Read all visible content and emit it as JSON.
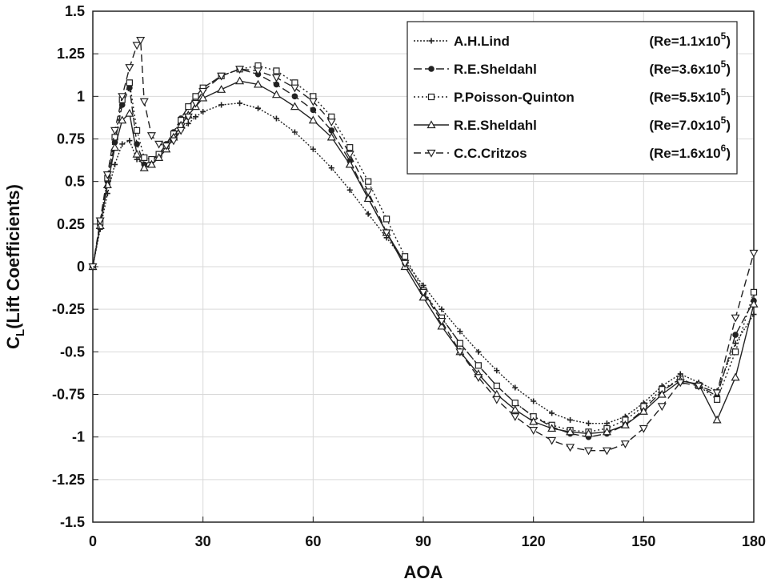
{
  "chart_data": {
    "type": "line",
    "xlabel": "AOA",
    "ylabel_main": "C",
    "ylabel_sub": "L",
    "ylabel_rest": "(Lift Coefficients)",
    "xlim": [
      0,
      180
    ],
    "ylim": [
      -1.5,
      1.5
    ],
    "xticks": [
      0,
      30,
      60,
      90,
      120,
      150,
      180
    ],
    "yticks": [
      1.5,
      1.25,
      1,
      0.75,
      0.5,
      0.25,
      0,
      -0.25,
      -0.5,
      -0.75,
      -1,
      -1.25,
      -1.5
    ],
    "ytick_labels": [
      "1.5",
      "1.25",
      "1",
      "0.75",
      "0.5",
      "0.25",
      "0",
      "-0.25",
      "-0.5",
      "-0.75",
      "-1",
      "-1.25",
      "-1.5"
    ],
    "grid": true,
    "legend_position": "top-right",
    "series": [
      {
        "name": "A.H.Lind",
        "re_base": "(Re=1.1x10",
        "re_exp": "5",
        "re_close": ")",
        "dash": "2,2",
        "marker": "plus",
        "x": [
          0,
          2,
          4,
          6,
          8,
          10,
          12,
          14,
          16,
          18,
          20,
          22,
          24,
          26,
          28,
          30,
          35,
          40,
          45,
          50,
          55,
          60,
          65,
          70,
          75,
          80,
          85,
          90,
          95,
          100,
          105,
          110,
          115,
          120,
          125,
          130,
          135,
          140,
          145,
          150,
          155,
          160,
          165,
          170,
          175,
          180
        ],
        "y": [
          0.0,
          0.22,
          0.43,
          0.6,
          0.72,
          0.74,
          0.63,
          0.6,
          0.62,
          0.66,
          0.71,
          0.76,
          0.8,
          0.84,
          0.88,
          0.91,
          0.95,
          0.96,
          0.93,
          0.87,
          0.79,
          0.69,
          0.58,
          0.45,
          0.31,
          0.17,
          0.03,
          -0.11,
          -0.25,
          -0.38,
          -0.5,
          -0.61,
          -0.71,
          -0.79,
          -0.86,
          -0.9,
          -0.92,
          -0.92,
          -0.88,
          -0.8,
          -0.7,
          -0.63,
          -0.68,
          -0.73,
          -0.45,
          -0.28
        ]
      },
      {
        "name": "R.E.Sheldahl",
        "re_base": "(Re=3.6x10",
        "re_exp": "5",
        "re_close": ")",
        "dash": "10,4",
        "marker": "dot",
        "x": [
          0,
          2,
          4,
          6,
          8,
          10,
          12,
          14,
          16,
          18,
          20,
          22,
          24,
          26,
          28,
          30,
          35,
          40,
          45,
          50,
          55,
          60,
          65,
          70,
          75,
          80,
          85,
          90,
          95,
          100,
          105,
          110,
          115,
          120,
          125,
          130,
          135,
          140,
          145,
          150,
          155,
          160,
          165,
          170,
          175,
          180
        ],
        "y": [
          0.0,
          0.25,
          0.5,
          0.73,
          0.95,
          1.05,
          0.72,
          0.6,
          0.62,
          0.66,
          0.72,
          0.79,
          0.87,
          0.94,
          1.0,
          1.05,
          1.12,
          1.16,
          1.13,
          1.07,
          1.0,
          0.92,
          0.8,
          0.62,
          0.4,
          0.2,
          0.02,
          -0.15,
          -0.3,
          -0.45,
          -0.58,
          -0.7,
          -0.8,
          -0.88,
          -0.94,
          -0.98,
          -1.0,
          -0.98,
          -0.93,
          -0.84,
          -0.73,
          -0.66,
          -0.7,
          -0.76,
          -0.4,
          -0.2
        ]
      },
      {
        "name": "P.Poisson-Quinton",
        "re_base": "(Re=5.5x10",
        "re_exp": "5",
        "re_close": ")",
        "dash": "2,3",
        "marker": "square",
        "x": [
          0,
          2,
          4,
          6,
          8,
          10,
          12,
          14,
          16,
          18,
          20,
          22,
          24,
          26,
          28,
          30,
          35,
          40,
          45,
          50,
          55,
          60,
          65,
          70,
          75,
          80,
          85,
          90,
          95,
          100,
          105,
          110,
          115,
          120,
          125,
          130,
          135,
          140,
          145,
          150,
          155,
          160,
          165,
          170,
          175,
          180
        ],
        "y": [
          0.0,
          0.26,
          0.52,
          0.76,
          0.98,
          1.08,
          0.8,
          0.64,
          0.63,
          0.66,
          0.71,
          0.78,
          0.86,
          0.94,
          1.0,
          1.05,
          1.12,
          1.16,
          1.18,
          1.15,
          1.08,
          1.0,
          0.88,
          0.7,
          0.5,
          0.28,
          0.06,
          -0.14,
          -0.3,
          -0.45,
          -0.58,
          -0.7,
          -0.8,
          -0.88,
          -0.93,
          -0.96,
          -0.97,
          -0.95,
          -0.9,
          -0.82,
          -0.72,
          -0.66,
          -0.7,
          -0.78,
          -0.5,
          -0.15
        ]
      },
      {
        "name": "R.E.Sheldahl",
        "re_base": "(Re=7.0x10",
        "re_exp": "5",
        "re_close": ")",
        "dash": "",
        "marker": "triangle",
        "x": [
          0,
          2,
          4,
          6,
          8,
          10,
          12,
          14,
          16,
          18,
          20,
          22,
          24,
          26,
          28,
          30,
          35,
          40,
          45,
          50,
          55,
          60,
          65,
          70,
          75,
          80,
          85,
          90,
          95,
          100,
          105,
          110,
          115,
          120,
          125,
          130,
          135,
          140,
          145,
          150,
          155,
          160,
          165,
          170,
          175,
          180
        ],
        "y": [
          0.0,
          0.24,
          0.48,
          0.7,
          0.86,
          0.9,
          0.66,
          0.58,
          0.6,
          0.64,
          0.69,
          0.76,
          0.83,
          0.89,
          0.94,
          0.99,
          1.04,
          1.09,
          1.07,
          1.01,
          0.94,
          0.86,
          0.76,
          0.6,
          0.4,
          0.2,
          0.0,
          -0.18,
          -0.35,
          -0.5,
          -0.63,
          -0.75,
          -0.84,
          -0.91,
          -0.95,
          -0.97,
          -0.98,
          -0.97,
          -0.93,
          -0.85,
          -0.75,
          -0.67,
          -0.69,
          -0.9,
          -0.65,
          -0.22
        ]
      },
      {
        "name": "C.C.Critzos",
        "re_base": "(Re=1.6x10",
        "re_exp": "6",
        "re_close": ")",
        "dash": "9,5",
        "marker": "triangle-down",
        "x": [
          0,
          2,
          4,
          6,
          8,
          10,
          12,
          13,
          14,
          16,
          18,
          20,
          22,
          24,
          26,
          28,
          30,
          35,
          40,
          45,
          50,
          55,
          60,
          65,
          70,
          75,
          80,
          85,
          90,
          95,
          100,
          105,
          110,
          115,
          120,
          125,
          130,
          135,
          140,
          145,
          150,
          155,
          160,
          165,
          170,
          175,
          180
        ],
        "y": [
          0.0,
          0.27,
          0.54,
          0.8,
          1.0,
          1.17,
          1.3,
          1.33,
          0.97,
          0.77,
          0.72,
          0.71,
          0.74,
          0.8,
          0.88,
          0.96,
          1.03,
          1.12,
          1.16,
          1.15,
          1.11,
          1.05,
          0.97,
          0.85,
          0.66,
          0.44,
          0.2,
          0.02,
          -0.15,
          -0.32,
          -0.5,
          -0.65,
          -0.78,
          -0.88,
          -0.96,
          -1.02,
          -1.06,
          -1.08,
          -1.08,
          -1.04,
          -0.95,
          -0.82,
          -0.68,
          -0.7,
          -0.74,
          -0.3,
          0.08
        ]
      }
    ]
  }
}
